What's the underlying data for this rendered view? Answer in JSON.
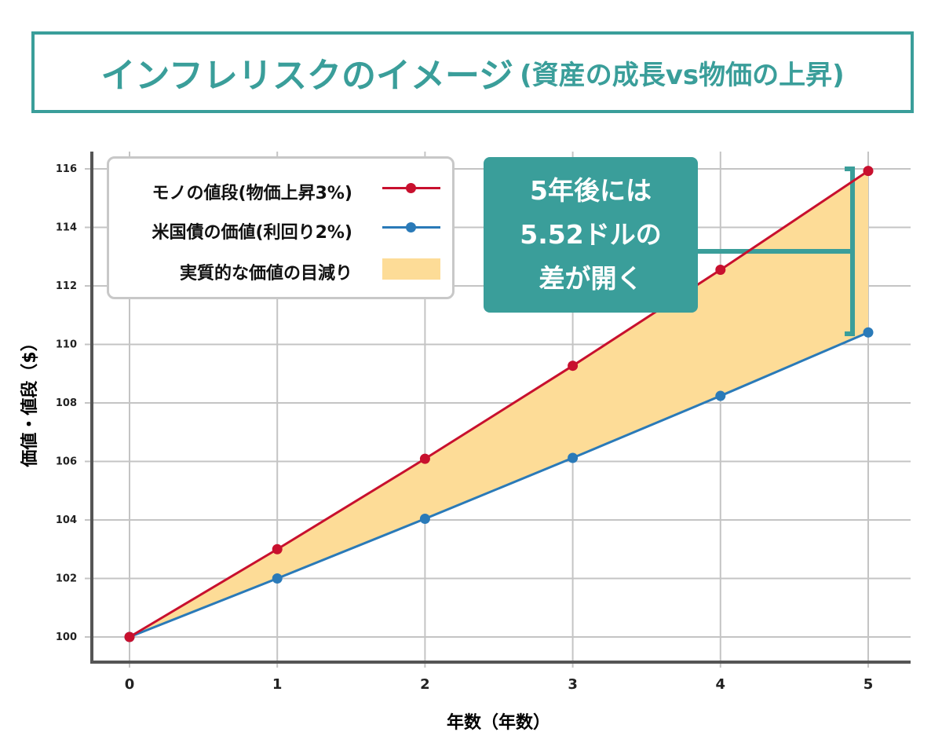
{
  "title": {
    "main": "インフレリスクのイメージ",
    "sub": "(資産の成長vs物価の上昇)"
  },
  "chart_data": {
    "type": "line",
    "xlabel": "年数（年数）",
    "ylabel": "価値・値段（$）",
    "x": [
      0,
      1,
      2,
      3,
      4,
      5
    ],
    "xlim": [
      0,
      5
    ],
    "ylim": [
      100,
      116
    ],
    "yticks": [
      100,
      102,
      104,
      106,
      108,
      110,
      112,
      114,
      116
    ],
    "xticks": [
      "0",
      "1",
      "2",
      "3",
      "4",
      "5"
    ],
    "grid": true,
    "legend_position": "top-left",
    "series": [
      {
        "name": "モノの値段(物価上昇3%)",
        "color": "#c8102e",
        "values": [
          100,
          103,
          106.09,
          109.27,
          112.55,
          115.93
        ]
      },
      {
        "name": "米国債の価値(利回り2%)",
        "color": "#2a7ab8",
        "values": [
          100,
          102,
          104.04,
          106.12,
          108.24,
          110.41
        ]
      }
    ],
    "fill_between": {
      "name": "実質的な価値の目減り",
      "color": "#fddc97"
    },
    "annotation": {
      "lines": [
        "5年後には",
        "5.52ドルの",
        "差が開く"
      ],
      "color": "#3a9e9a"
    }
  }
}
